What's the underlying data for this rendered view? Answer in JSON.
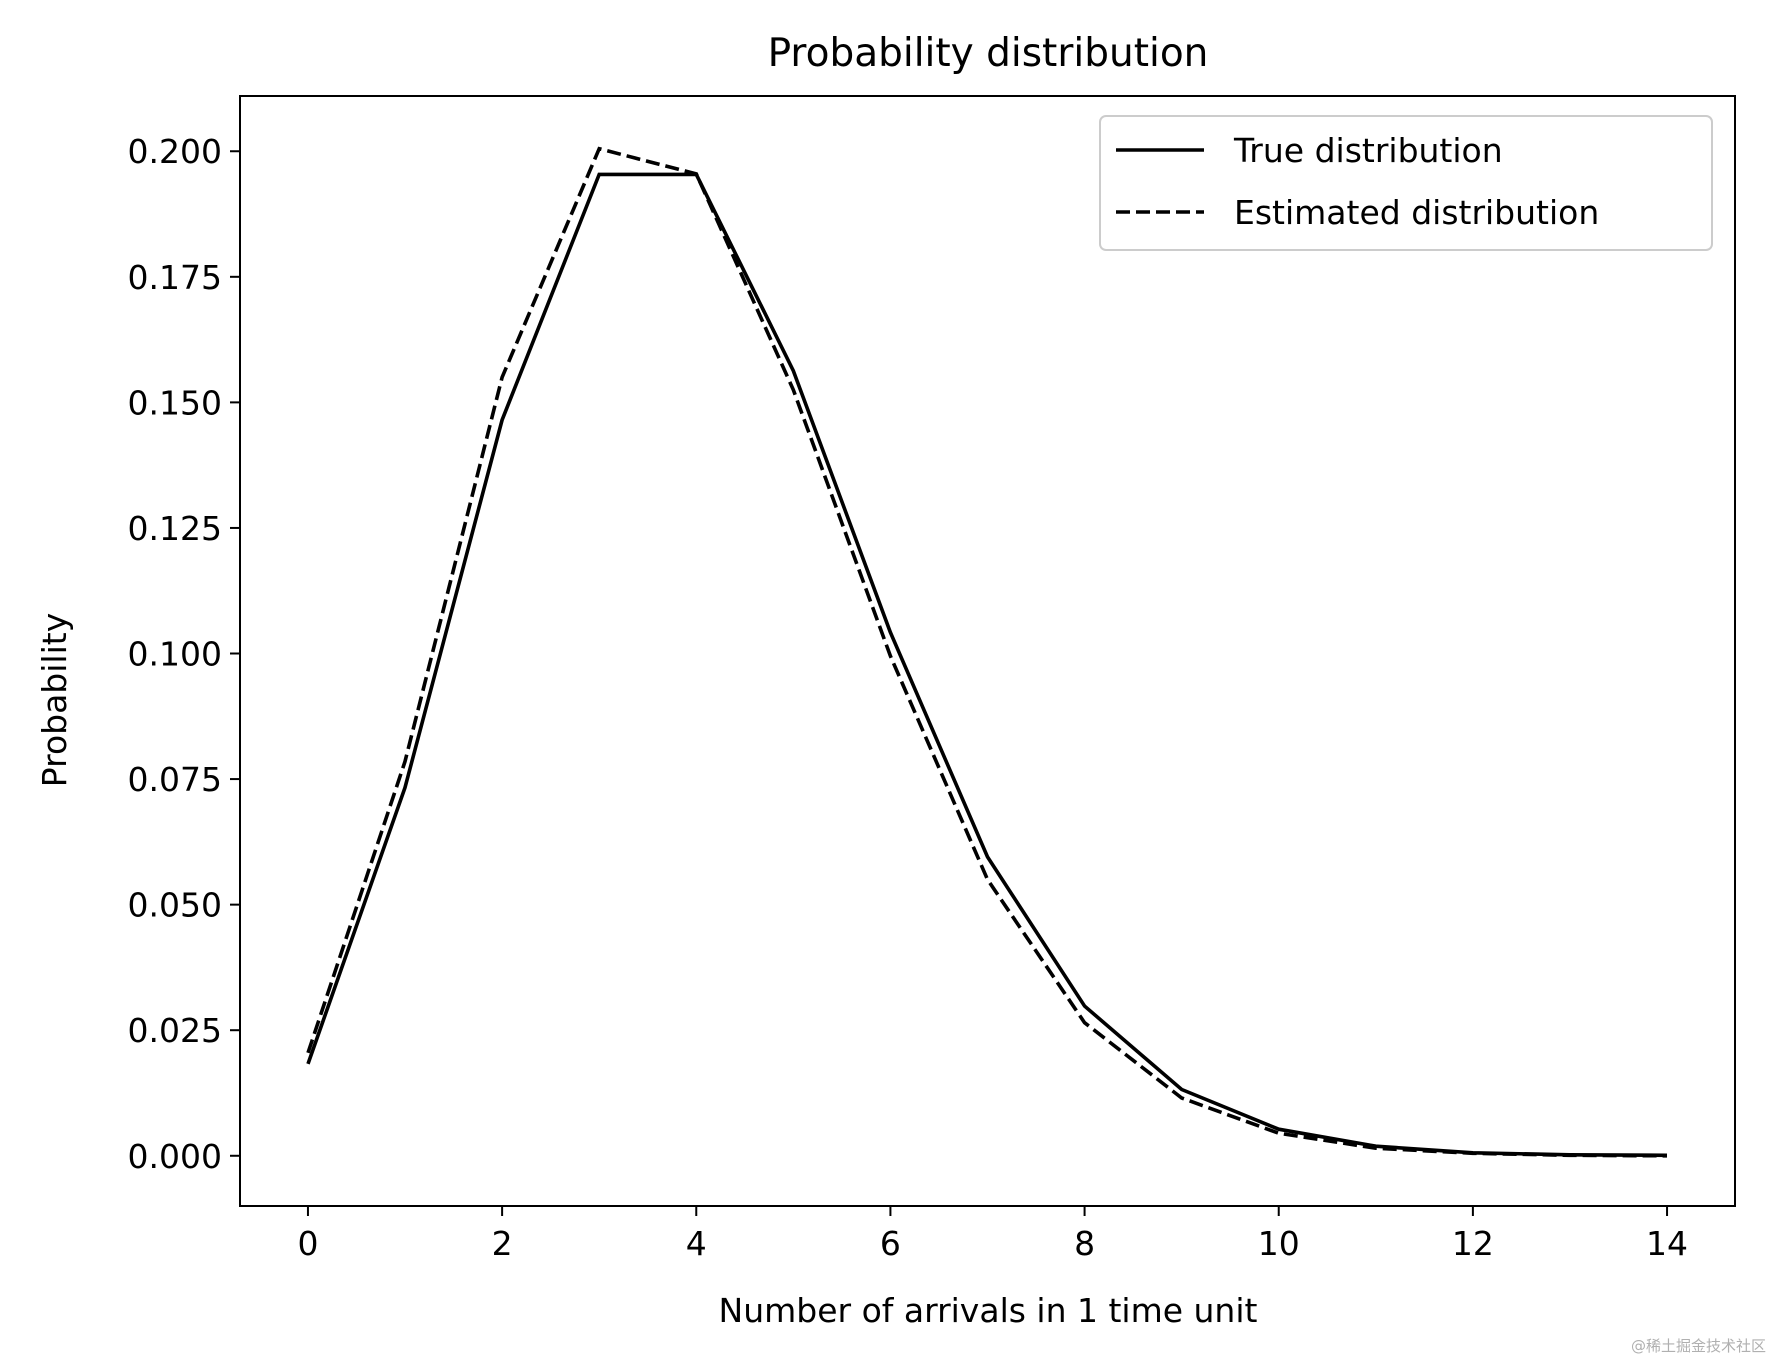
{
  "chart_data": {
    "type": "line",
    "title": "Probability distribution",
    "xlabel": "Number of arrivals in 1 time unit",
    "ylabel": "Probability",
    "xlim": [
      -0.7,
      14.7
    ],
    "ylim": [
      -0.01,
      0.211
    ],
    "x": [
      0,
      1,
      2,
      3,
      4,
      5,
      6,
      7,
      8,
      9,
      10,
      11,
      12,
      13,
      14
    ],
    "xticks": [
      0,
      2,
      4,
      6,
      8,
      10,
      12,
      14
    ],
    "yticks": [
      0.0,
      0.025,
      0.05,
      0.075,
      0.1,
      0.125,
      0.15,
      0.175,
      0.2
    ],
    "ytick_labels": [
      "0.000",
      "0.025",
      "0.050",
      "0.075",
      "0.100",
      "0.125",
      "0.150",
      "0.175",
      "0.200"
    ],
    "grid": false,
    "legend_position": "top-right",
    "series": [
      {
        "name": "True distribution",
        "style": "solid",
        "color": "#000000",
        "values": [
          0.0183,
          0.0733,
          0.1465,
          0.1954,
          0.1954,
          0.1563,
          0.1042,
          0.0595,
          0.0298,
          0.0132,
          0.0053,
          0.0019,
          0.0006,
          0.0002,
          0.0001
        ]
      },
      {
        "name": "Estimated distribution",
        "style": "dashed",
        "color": "#000000",
        "values": [
          0.0205,
          0.0785,
          0.155,
          0.2005,
          0.1955,
          0.1525,
          0.0995,
          0.055,
          0.0265,
          0.0115,
          0.0045,
          0.0015,
          0.0005,
          0.0001,
          0.0
        ]
      }
    ]
  },
  "watermark": "@稀土掘金技术社区"
}
